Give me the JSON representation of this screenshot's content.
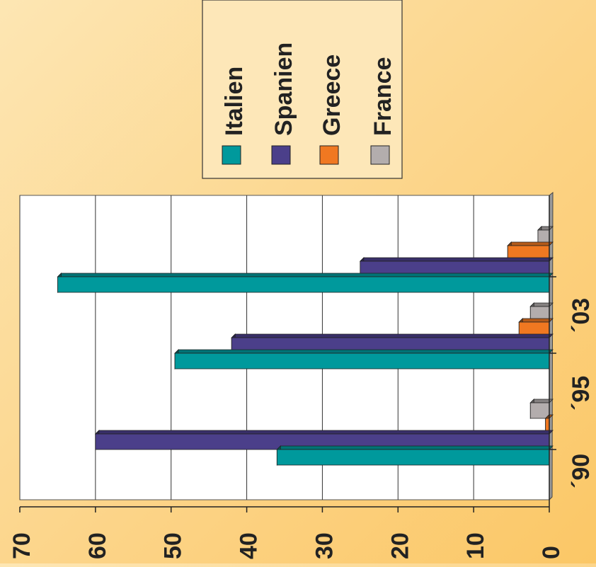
{
  "chart_data": {
    "type": "bar",
    "orientation": "horizontal",
    "rotated_page": true,
    "categories": [
      "´90",
      "´95",
      "´03"
    ],
    "series": [
      {
        "name": "Italien",
        "color": "#00999c",
        "values": [
          36,
          49.5,
          65
        ]
      },
      {
        "name": "Spanien",
        "color": "#4b3f8a",
        "values": [
          60,
          42,
          25
        ]
      },
      {
        "name": "Greece",
        "color": "#f07821",
        "values": [
          0.5,
          4,
          5.5
        ]
      },
      {
        "name": "France",
        "color": "#b3adad",
        "values": [
          2.5,
          2.5,
          1.5
        ]
      }
    ],
    "ylim": [
      0,
      70
    ],
    "ticks": [
      "0",
      "10",
      "20",
      "30",
      "40",
      "50",
      "60",
      "70"
    ],
    "tick_values": [
      0,
      10,
      20,
      30,
      40,
      50,
      60,
      70
    ],
    "grid": true,
    "legend_position": "top"
  }
}
